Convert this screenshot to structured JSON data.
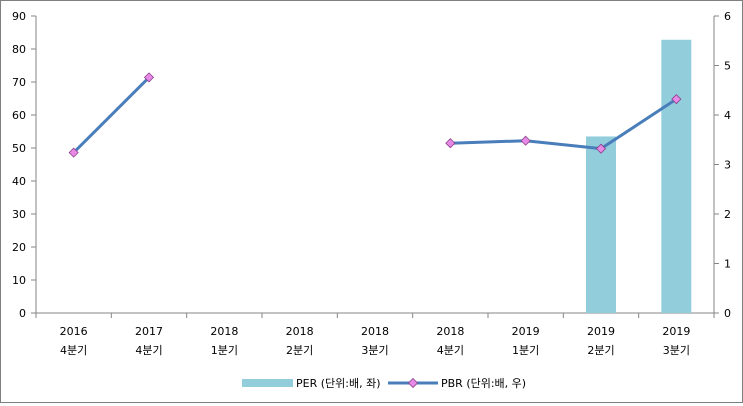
{
  "chart_data": {
    "type": "bar",
    "categories": [
      [
        "2016",
        "4분기"
      ],
      [
        "2017",
        "4분기"
      ],
      [
        "2018",
        "1분기"
      ],
      [
        "2018",
        "2분기"
      ],
      [
        "2018",
        "3분기"
      ],
      [
        "2018",
        "4분기"
      ],
      [
        "2019",
        "1분기"
      ],
      [
        "2019",
        "2분기"
      ],
      [
        "2019",
        "3분기"
      ]
    ],
    "series": [
      {
        "name": "PER (단위:배, 좌)",
        "type": "bar",
        "axis": "left",
        "color": "#92cddc",
        "values": [
          null,
          null,
          null,
          null,
          null,
          null,
          null,
          53.5,
          82.8
        ]
      },
      {
        "name": "PBR (단위:배, 우)",
        "type": "line",
        "axis": "right",
        "color": "#4a7ebb",
        "marker_color": "#e78ae7",
        "values": [
          3.24,
          4.76,
          null,
          null,
          null,
          3.43,
          3.48,
          3.32,
          4.32
        ]
      }
    ],
    "y_left": {
      "min": 0,
      "max": 90,
      "ticks": [
        0,
        10,
        20,
        30,
        40,
        50,
        60,
        70,
        80,
        90
      ]
    },
    "y_right": {
      "min": 0,
      "max": 6,
      "ticks": [
        0,
        1,
        2,
        3,
        4,
        5,
        6
      ]
    },
    "legend_position": "bottom",
    "grid": false
  }
}
